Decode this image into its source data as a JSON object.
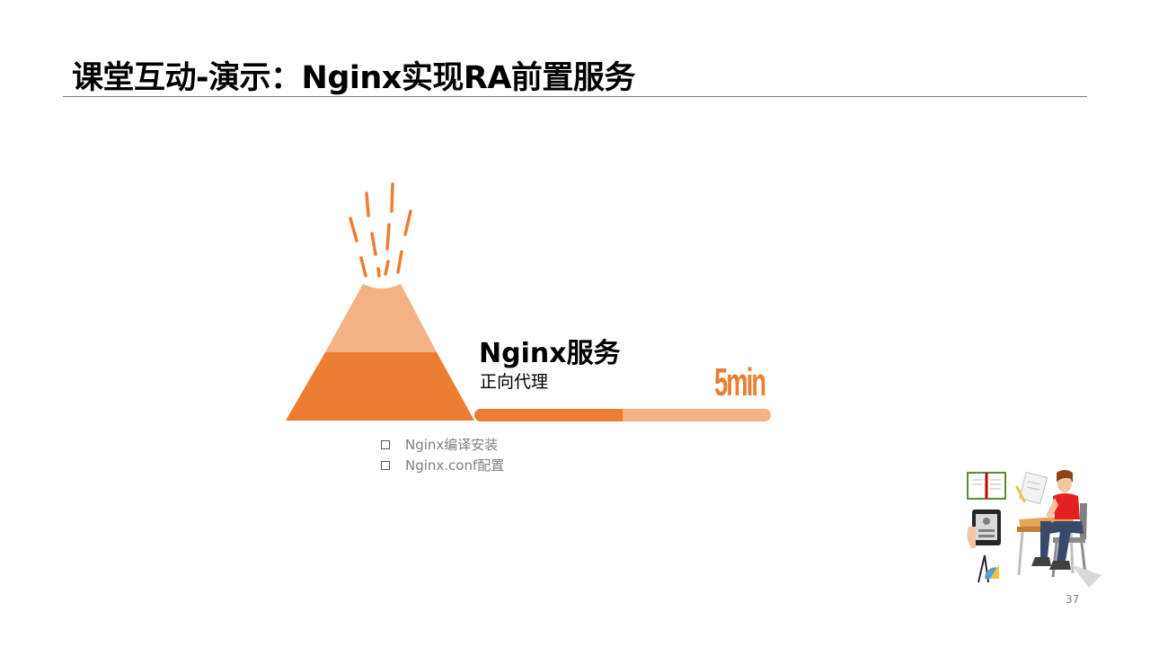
{
  "slide": {
    "title": "课堂互动-演示：Nginx实现RA前置服务",
    "topic": {
      "heading": "Nginx服务",
      "subheading": "正向代理",
      "duration": "5min",
      "progress": 0.5
    },
    "bullets": [
      {
        "text": "Nginx编译安装",
        "icon": "square-bullet-icon"
      },
      {
        "text": "Nginx.conf配置",
        "icon": "square-bullet-icon"
      }
    ],
    "page_number": "37"
  },
  "colors": {
    "accent": "#ed7d31",
    "accent_light": "#f4b183",
    "text": "#000000",
    "muted_text": "#7f7f7f",
    "rule": "#7f7f7f"
  }
}
